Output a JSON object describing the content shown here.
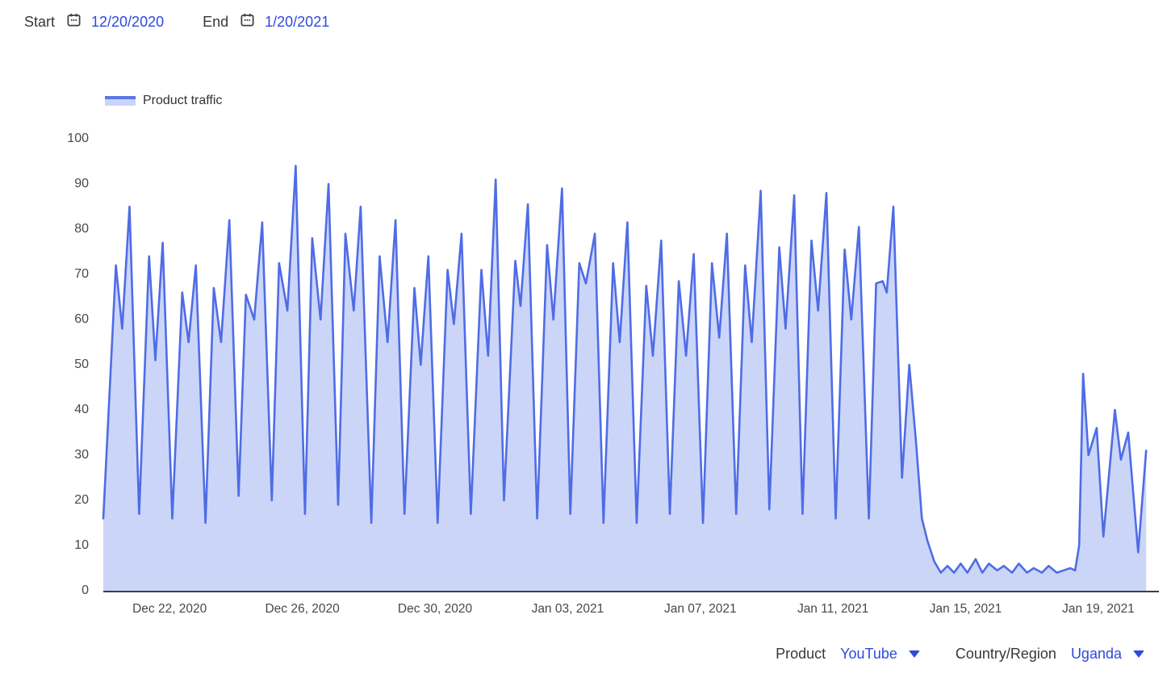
{
  "header": {
    "start_label": "Start",
    "start_date": "12/20/2020",
    "end_label": "End",
    "end_date": "1/20/2021"
  },
  "legend": {
    "label": "Product traffic"
  },
  "footer": {
    "product_label": "Product",
    "product_value": "YouTube",
    "region_label": "Country/Region",
    "region_value": "Uganda"
  },
  "colors": {
    "link_blue": "#2e49e1",
    "line_blue": "#4f6ce6",
    "area_fill": "#cbd5f7",
    "axis_line": "#3c4043",
    "tick_text": "#45484c"
  },
  "chart_data": {
    "type": "area",
    "series_name": "Product traffic",
    "x_unit": "days since 2020-12-20",
    "xlim": [
      0,
      31.44
    ],
    "ylim": [
      0,
      100
    ],
    "grid": false,
    "legend_position": "top-left",
    "y_ticks": [
      0,
      10,
      20,
      30,
      40,
      50,
      60,
      70,
      80,
      90,
      100
    ],
    "x_ticks": [
      {
        "t": 2,
        "label": "Dec 22, 2020"
      },
      {
        "t": 6,
        "label": "Dec 26, 2020"
      },
      {
        "t": 10,
        "label": "Dec 30, 2020"
      },
      {
        "t": 14,
        "label": "Jan 03, 2021"
      },
      {
        "t": 18,
        "label": "Jan 07, 2021"
      },
      {
        "t": 22,
        "label": "Jan 11, 2021"
      },
      {
        "t": 26,
        "label": "Jan 15, 2021"
      },
      {
        "t": 30,
        "label": "Jan 19, 2021"
      }
    ],
    "points": [
      [
        0.0,
        16
      ],
      [
        0.38,
        72
      ],
      [
        0.57,
        58
      ],
      [
        0.79,
        85
      ],
      [
        1.08,
        17
      ],
      [
        1.38,
        74
      ],
      [
        1.57,
        51
      ],
      [
        1.79,
        77
      ],
      [
        2.08,
        16
      ],
      [
        2.38,
        66
      ],
      [
        2.57,
        55
      ],
      [
        2.79,
        72
      ],
      [
        3.08,
        15
      ],
      [
        3.33,
        67
      ],
      [
        3.55,
        55
      ],
      [
        3.8,
        82
      ],
      [
        4.08,
        21
      ],
      [
        4.3,
        65.5
      ],
      [
        4.55,
        60
      ],
      [
        4.79,
        81.5
      ],
      [
        5.08,
        20
      ],
      [
        5.3,
        72.5
      ],
      [
        5.55,
        62
      ],
      [
        5.8,
        94
      ],
      [
        6.08,
        17
      ],
      [
        6.3,
        78
      ],
      [
        6.55,
        60
      ],
      [
        6.79,
        90
      ],
      [
        7.08,
        19
      ],
      [
        7.3,
        79
      ],
      [
        7.55,
        62
      ],
      [
        7.76,
        85
      ],
      [
        8.08,
        15
      ],
      [
        8.33,
        74
      ],
      [
        8.57,
        55
      ],
      [
        8.81,
        82
      ],
      [
        9.08,
        17
      ],
      [
        9.38,
        67
      ],
      [
        9.57,
        50
      ],
      [
        9.8,
        74
      ],
      [
        10.08,
        15
      ],
      [
        10.38,
        71
      ],
      [
        10.57,
        59
      ],
      [
        10.8,
        79
      ],
      [
        11.08,
        17
      ],
      [
        11.4,
        71
      ],
      [
        11.6,
        52
      ],
      [
        11.83,
        91
      ],
      [
        12.08,
        20
      ],
      [
        12.42,
        73
      ],
      [
        12.58,
        63
      ],
      [
        12.8,
        85.5
      ],
      [
        13.08,
        16
      ],
      [
        13.38,
        76.5
      ],
      [
        13.57,
        60
      ],
      [
        13.83,
        89
      ],
      [
        14.08,
        17
      ],
      [
        14.35,
        72.5
      ],
      [
        14.55,
        68
      ],
      [
        14.82,
        79
      ],
      [
        15.08,
        15
      ],
      [
        15.37,
        72.5
      ],
      [
        15.57,
        55
      ],
      [
        15.8,
        81.5
      ],
      [
        16.08,
        15
      ],
      [
        16.37,
        67.5
      ],
      [
        16.57,
        52
      ],
      [
        16.82,
        77.5
      ],
      [
        17.08,
        17
      ],
      [
        17.35,
        68.5
      ],
      [
        17.57,
        52
      ],
      [
        17.8,
        74.5
      ],
      [
        18.08,
        15
      ],
      [
        18.35,
        72.5
      ],
      [
        18.57,
        56
      ],
      [
        18.8,
        79
      ],
      [
        19.08,
        17
      ],
      [
        19.35,
        72
      ],
      [
        19.55,
        55
      ],
      [
        19.82,
        88.5
      ],
      [
        20.08,
        18
      ],
      [
        20.38,
        76
      ],
      [
        20.57,
        58
      ],
      [
        20.83,
        87.5
      ],
      [
        21.08,
        17
      ],
      [
        21.35,
        77.5
      ],
      [
        21.55,
        62
      ],
      [
        21.8,
        88
      ],
      [
        22.08,
        16
      ],
      [
        22.35,
        75.5
      ],
      [
        22.55,
        60
      ],
      [
        22.78,
        80.5
      ],
      [
        23.08,
        16
      ],
      [
        23.3,
        68
      ],
      [
        23.5,
        68.5
      ],
      [
        23.62,
        66
      ],
      [
        23.82,
        85
      ],
      [
        24.08,
        25
      ],
      [
        24.3,
        50
      ],
      [
        24.5,
        33
      ],
      [
        24.68,
        16
      ],
      [
        24.85,
        11
      ],
      [
        25.05,
        6.5
      ],
      [
        25.25,
        4
      ],
      [
        25.45,
        5.5
      ],
      [
        25.65,
        4
      ],
      [
        25.85,
        6
      ],
      [
        26.05,
        4
      ],
      [
        26.3,
        7
      ],
      [
        26.5,
        4
      ],
      [
        26.7,
        6
      ],
      [
        26.95,
        4.5
      ],
      [
        27.15,
        5.5
      ],
      [
        27.4,
        4
      ],
      [
        27.6,
        6
      ],
      [
        27.85,
        4
      ],
      [
        28.05,
        5
      ],
      [
        28.3,
        4
      ],
      [
        28.5,
        5.5
      ],
      [
        28.75,
        4
      ],
      [
        28.95,
        4.5
      ],
      [
        29.15,
        5
      ],
      [
        29.3,
        4.5
      ],
      [
        29.42,
        10
      ],
      [
        29.54,
        48
      ],
      [
        29.7,
        30
      ],
      [
        29.95,
        36
      ],
      [
        30.15,
        12
      ],
      [
        30.5,
        40
      ],
      [
        30.68,
        29
      ],
      [
        30.9,
        35
      ],
      [
        31.2,
        8.5
      ],
      [
        31.44,
        31
      ]
    ]
  }
}
